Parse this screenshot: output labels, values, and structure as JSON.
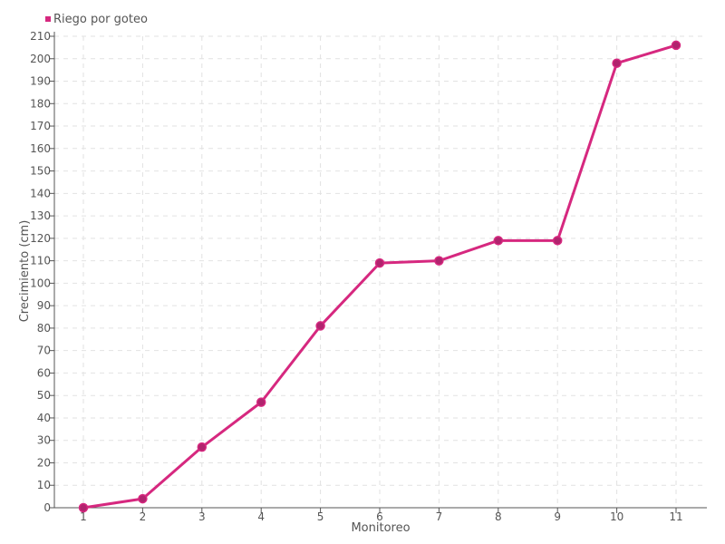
{
  "chart_data": {
    "type": "line",
    "title": "",
    "xlabel": "Monitoreo",
    "ylabel": "Crecimiento (cm)",
    "categories": [
      "1",
      "2",
      "3",
      "4",
      "5",
      "6",
      "7",
      "8",
      "9",
      "10",
      "11"
    ],
    "series": [
      {
        "name": "Riego por goteo",
        "values": [
          0,
          4,
          27,
          47,
          81,
          109,
          110,
          119,
          119,
          198,
          206
        ]
      }
    ],
    "ylim": [
      0,
      210
    ],
    "ytick_step": 10,
    "y_ticks": [
      "0",
      "10",
      "20",
      "30",
      "40",
      "50",
      "60",
      "70",
      "80",
      "90",
      "100",
      "110",
      "120",
      "130",
      "140",
      "150",
      "160",
      "170",
      "180",
      "190",
      "200",
      "210"
    ],
    "grid": true,
    "legend": "top-left",
    "colors": {
      "line": "#d6287f",
      "marker": "#b0246e",
      "grid": "#e2e2e2",
      "axis": "#555555"
    }
  }
}
